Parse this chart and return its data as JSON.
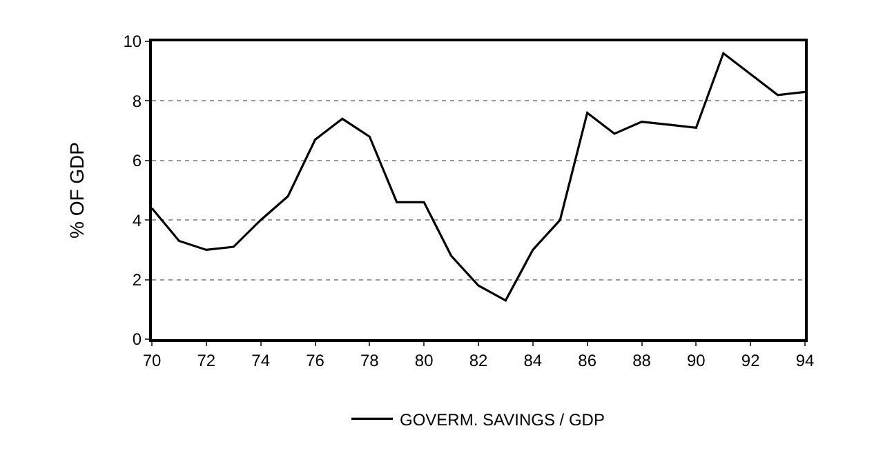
{
  "chart_data": {
    "type": "line",
    "ylabel": "% OF GDP",
    "x": [
      1970,
      1971,
      1972,
      1973,
      1974,
      1975,
      1976,
      1977,
      1978,
      1979,
      1980,
      1981,
      1982,
      1983,
      1984,
      1985,
      1986,
      1987,
      1988,
      1989,
      1990,
      1991,
      1992,
      1993,
      1994
    ],
    "series": [
      {
        "name": "GOVERM. SAVINGS / GDP",
        "color": "#000000",
        "values": [
          4.4,
          3.3,
          3.0,
          3.1,
          4.0,
          4.8,
          6.7,
          7.4,
          6.8,
          4.6,
          4.6,
          2.8,
          1.8,
          1.3,
          3.0,
          4.0,
          7.6,
          6.9,
          7.3,
          7.2,
          7.1,
          9.6,
          8.9,
          8.2,
          8.3
        ]
      }
    ],
    "xlim": [
      1970,
      1994
    ],
    "xticks": [
      {
        "value": 1970,
        "label": "70"
      },
      {
        "value": 1972,
        "label": "72"
      },
      {
        "value": 1974,
        "label": "74"
      },
      {
        "value": 1976,
        "label": "76"
      },
      {
        "value": 1978,
        "label": "78"
      },
      {
        "value": 1980,
        "label": "80"
      },
      {
        "value": 1982,
        "label": "82"
      },
      {
        "value": 1984,
        "label": "84"
      },
      {
        "value": 1986,
        "label": "86"
      },
      {
        "value": 1988,
        "label": "88"
      },
      {
        "value": 1990,
        "label": "90"
      },
      {
        "value": 1992,
        "label": "92"
      },
      {
        "value": 1994,
        "label": "94"
      }
    ],
    "ylim": [
      0,
      10
    ],
    "yticks": [
      0,
      2,
      4,
      6,
      8,
      10
    ],
    "grid": "y",
    "legend": "bottom",
    "marker": "none",
    "line_style": "solid"
  }
}
